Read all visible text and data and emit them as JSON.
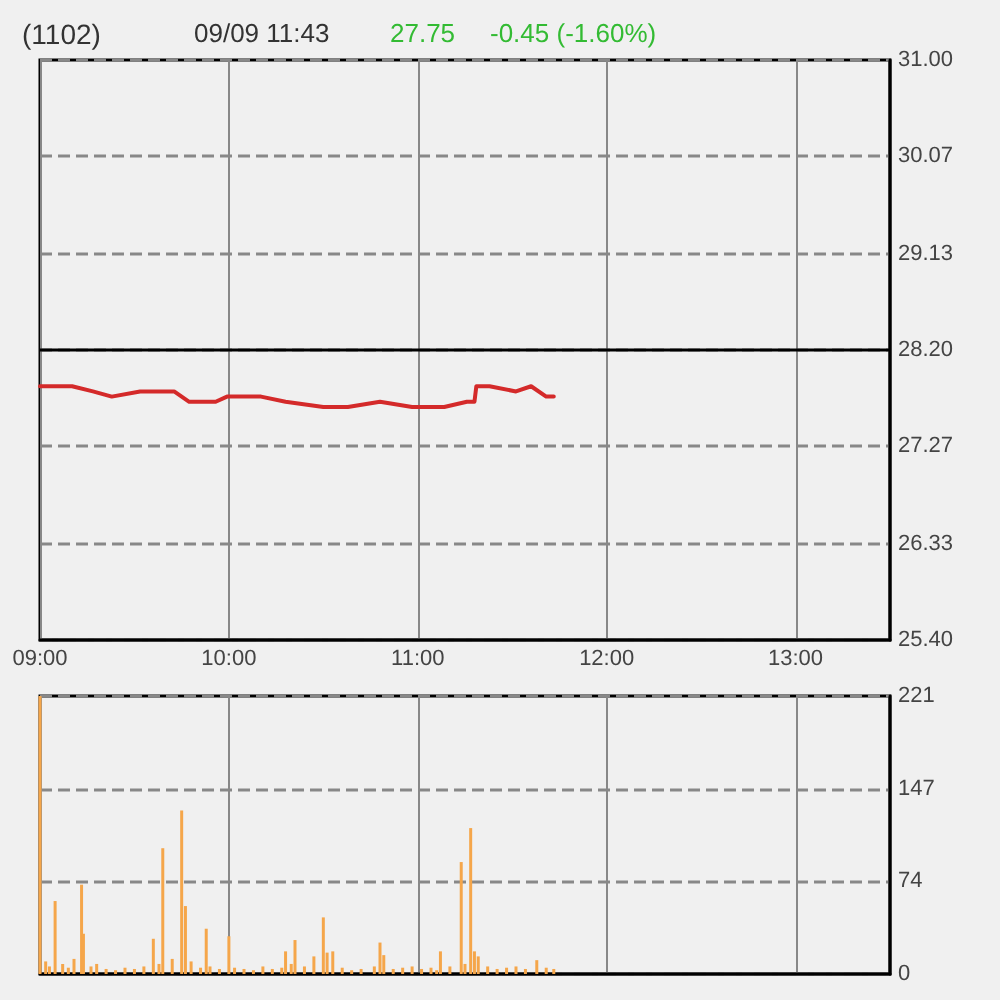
{
  "chart_data": [
    {
      "type": "line",
      "title": "(1102)",
      "subtitle": "09/09 11:43",
      "annotations": [
        "27.75",
        "-0.45 (-1.60%)"
      ],
      "x": [
        9.0,
        9.1,
        9.17,
        9.28,
        9.38,
        9.53,
        9.71,
        9.79,
        9.93,
        9.99,
        10.17,
        10.3,
        10.5,
        10.63,
        10.8,
        10.97,
        11.14,
        11.26,
        11.3,
        11.31,
        11.38,
        11.52,
        11.6,
        11.68,
        11.72
      ],
      "values": [
        27.85,
        27.85,
        27.85,
        27.8,
        27.75,
        27.8,
        27.8,
        27.7,
        27.7,
        27.75,
        27.75,
        27.7,
        27.65,
        27.65,
        27.7,
        27.65,
        27.65,
        27.7,
        27.7,
        27.85,
        27.85,
        27.8,
        27.85,
        27.75,
        27.75
      ],
      "color": "#d42a2a",
      "xlim": [
        9,
        13.5
      ],
      "xticks": [
        {
          "value": 9,
          "label": "09:00"
        },
        {
          "value": 10,
          "label": "10:00"
        },
        {
          "value": 11,
          "label": "11:00"
        },
        {
          "value": 12,
          "label": "12:00"
        },
        {
          "value": 13,
          "label": "13:00"
        }
      ],
      "ylim": [
        25.4,
        31
      ],
      "yticks": [
        {
          "value": 25.4,
          "label": "25.40"
        },
        26.33,
        27.27,
        {
          "value": 28.2,
          "label": "28.20"
        },
        29.13,
        30.07,
        {
          "value": 31,
          "label": "31.00"
        }
      ],
      "grid": true,
      "ref_lines": [
        {
          "axis": "y",
          "value": 28.2,
          "color": "#000000",
          "line_style": "solid"
        }
      ]
    },
    {
      "type": "bar",
      "x": [
        9.0,
        9.03,
        9.05,
        9.08,
        9.12,
        9.15,
        9.18,
        9.22,
        9.23,
        9.27,
        9.3,
        9.35,
        9.4,
        9.45,
        9.5,
        9.55,
        9.6,
        9.63,
        9.65,
        9.7,
        9.75,
        9.77,
        9.8,
        9.85,
        9.88,
        9.9,
        9.95,
        10.0,
        10.03,
        10.08,
        10.13,
        10.18,
        10.23,
        10.28,
        10.3,
        10.33,
        10.35,
        10.4,
        10.45,
        10.5,
        10.52,
        10.55,
        10.6,
        10.65,
        10.7,
        10.77,
        10.8,
        10.82,
        10.87,
        10.92,
        10.97,
        11.02,
        11.07,
        11.1,
        11.12,
        11.17,
        11.23,
        11.25,
        11.28,
        11.3,
        11.32,
        11.37,
        11.42,
        11.47,
        11.52,
        11.57,
        11.63,
        11.68,
        11.72
      ],
      "values": [
        221,
        10,
        6,
        58,
        8,
        5,
        12,
        71,
        32,
        6,
        8,
        4,
        3,
        5,
        4,
        6,
        28,
        8,
        100,
        12,
        130,
        54,
        10,
        5,
        36,
        6,
        4,
        30,
        5,
        4,
        3,
        6,
        4,
        5,
        18,
        8,
        27,
        6,
        14,
        45,
        17,
        18,
        5,
        3,
        4,
        6,
        25,
        15,
        4,
        5,
        6,
        4,
        5,
        3,
        18,
        6,
        89,
        8,
        116,
        18,
        14,
        6,
        4,
        5,
        6,
        4,
        11,
        5,
        4
      ],
      "color": "#f5a64a",
      "xlim": [
        9,
        13.5
      ],
      "xticks": [
        9,
        10,
        11,
        12,
        13
      ],
      "ylim": [
        0,
        221
      ],
      "yticks": [
        0,
        74,
        147,
        221
      ],
      "grid": true,
      "tick_labels": "y"
    }
  ]
}
